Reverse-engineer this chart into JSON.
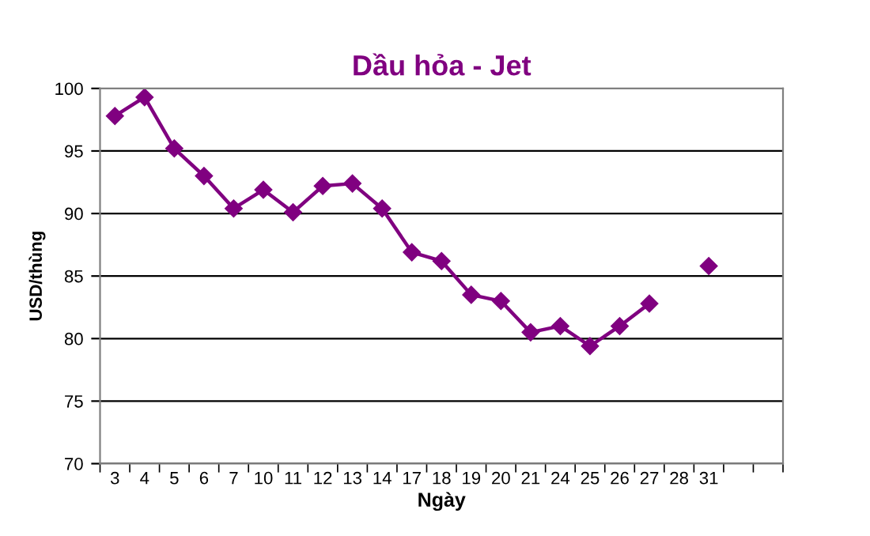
{
  "chart_data": {
    "type": "line",
    "title": "Dầu hỏa - Jet",
    "xlabel": "Ngày",
    "ylabel": "USD/thùng",
    "categories": [
      "3",
      "4",
      "5",
      "6",
      "7",
      "10",
      "11",
      "12",
      "13",
      "14",
      "17",
      "18",
      "19",
      "20",
      "21",
      "24",
      "25",
      "26",
      "27",
      "28",
      "31",
      null,
      null
    ],
    "series": [
      {
        "color": "#800080",
        "values": [
          97.8,
          99.3,
          95.2,
          93.0,
          90.4,
          91.9,
          90.1,
          92.2,
          92.4,
          90.4,
          86.9,
          86.2,
          83.5,
          83.0,
          80.5,
          81.0,
          79.4,
          81.0,
          82.8,
          null,
          85.8,
          null,
          null
        ]
      }
    ],
    "ylim": [
      70,
      100
    ],
    "yticks": [
      70,
      75,
      80,
      85,
      90,
      95,
      100
    ],
    "grid": "y",
    "marker": "diamond",
    "line_style": "solid",
    "legend": false
  }
}
